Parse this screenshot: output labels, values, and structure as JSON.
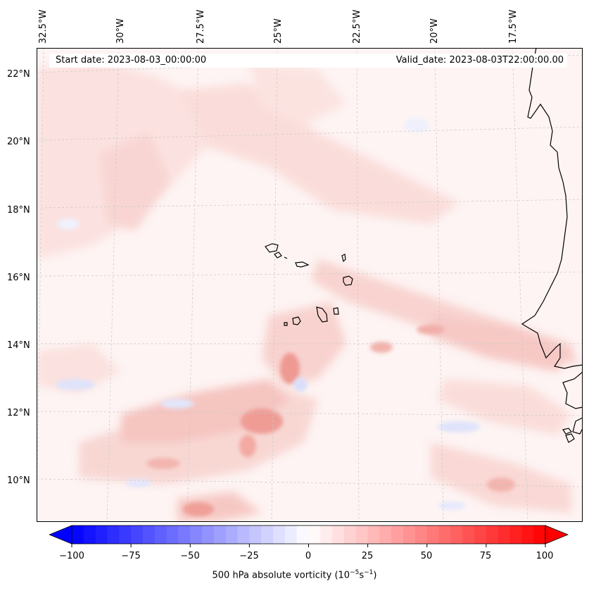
{
  "map": {
    "header": {
      "start_date": "Start date: 2023-08-03_00:00:00",
      "valid_date": "Valid_date: 2023-08-03T22:00:00.00"
    },
    "longitude_labels": [
      "32.5°W",
      "30°W",
      "27.5°W",
      "25°W",
      "22.5°W",
      "20°W",
      "17.5°W"
    ],
    "latitude_labels": [
      "22°N",
      "20°N",
      "18°N",
      "16°N",
      "14°N",
      "12°N",
      "10°N"
    ]
  },
  "colorbar": {
    "tick_labels": [
      "−100",
      "−75",
      "−50",
      "−25",
      "0",
      "25",
      "50",
      "75",
      "100"
    ],
    "label_prefix": "500 hPa absolute vorticity (10",
    "label_exp1": "−5",
    "label_mid": "s",
    "label_exp2": "−1",
    "label_suffix": ")",
    "min_color": "#0000ff",
    "mid_color": "#ffffff",
    "max_color": "#ff0000"
  }
}
